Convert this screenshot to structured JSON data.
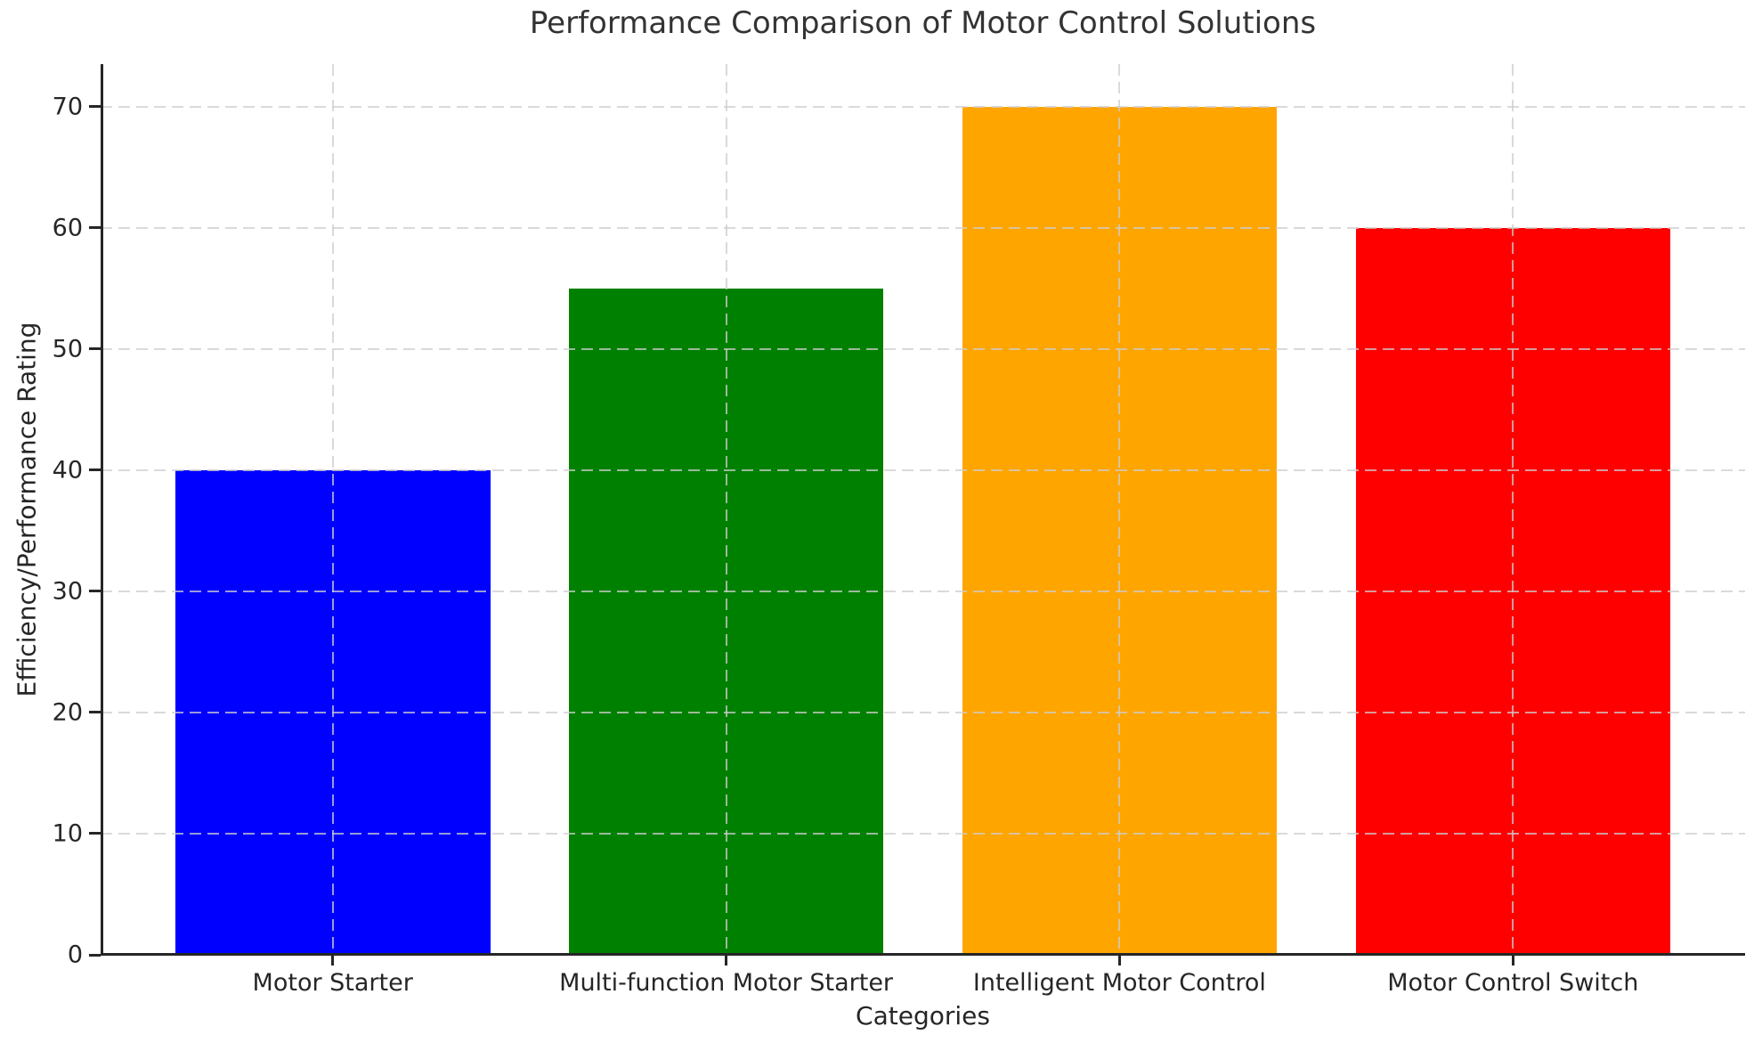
{
  "chart_data": {
    "type": "bar",
    "title": "Performance Comparison of Motor Control Solutions",
    "xlabel": "Categories",
    "ylabel": "Efficiency/Performance Rating",
    "categories": [
      "Motor Starter",
      "Multi-function Motor Starter",
      "Intelligent Motor Control",
      "Motor Control Switch"
    ],
    "values": [
      40,
      55,
      70,
      60
    ],
    "bar_colors": [
      "#0000ff",
      "#008000",
      "#ffa500",
      "#ff0000"
    ],
    "y_ticks": [
      0,
      10,
      20,
      30,
      40,
      50,
      60,
      70
    ],
    "ylim": [
      0,
      73.5
    ],
    "bar_width_frac": 0.8,
    "grid": {
      "visible": true,
      "linestyle": "dashed",
      "color": "#cdcdcd",
      "alpha": 0.75,
      "drawn_above_bars": true
    },
    "legend": "none",
    "axis_color": "#262626",
    "text_color": "#262626",
    "background_color": "#ffffff"
  }
}
